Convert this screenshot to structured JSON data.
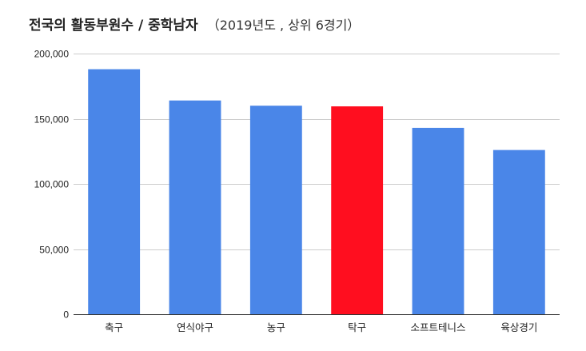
{
  "chart_data": {
    "type": "bar",
    "title": "전국의 활동부원수 / 중학남자",
    "subtitle": "（2019년도 , 상위 6경기）",
    "categories": [
      "축구",
      "연식야구",
      "농구",
      "탁구",
      "소프트테니스",
      "육상경기"
    ],
    "values": [
      188000,
      164000,
      160000,
      159500,
      143000,
      126000
    ],
    "ylim": [
      0,
      200000
    ],
    "yticks": [
      0,
      50000,
      100000,
      150000,
      200000
    ],
    "ytick_labels": [
      "0",
      "50,000",
      "100,000",
      "150,000",
      "200,000"
    ],
    "grid": true,
    "legend": "none",
    "colors": {
      "default": "#4a86e8",
      "highlight": "#ff0e1f",
      "highlight_category": "탁구"
    }
  }
}
